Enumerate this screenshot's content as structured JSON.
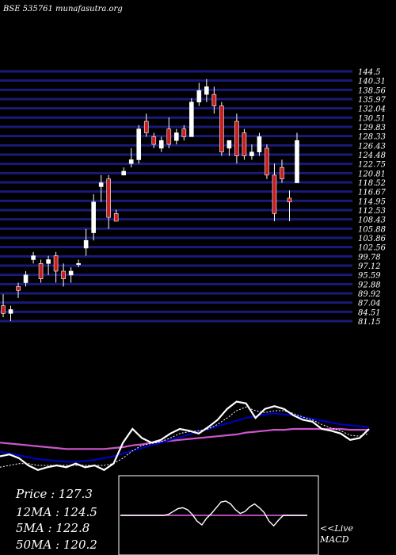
{
  "header": {
    "title": "BSE 535761 munafasutra.org"
  },
  "indicators": {
    "price": "Price   : 127.3",
    "ma12": "12MA : 124.5",
    "ma5": "5MA : 122.8",
    "ma50": "50MA : 120.2"
  },
  "macd": {
    "live_label": "<<Live",
    "label": "MACD"
  },
  "colors": {
    "background": "#000000",
    "gridline": "#1a1a7a",
    "bull": "#ffffff",
    "bear": "#c81e1e",
    "ma_fast": "#0000cc",
    "ma_slow": "#cc55cc",
    "price_line": "#ffffff"
  },
  "chart_data": [
    {
      "type": "candlestick",
      "title": "BSE 535761 munafasutra.org",
      "y_tick_labels": [
        "144.5",
        "140.31",
        "138.56",
        "135.97",
        "132.04",
        "130.51",
        "129.83",
        "128.33",
        "126.43",
        "124.48",
        "122.75",
        "120.81",
        "118.52",
        "116.67",
        "114.95",
        "112.53",
        "108.43",
        "105.88",
        "103.86",
        "102.56",
        "99.78",
        "97.12",
        "95.59",
        "92.88",
        "89.92",
        "87.04",
        "84.51",
        "81.15"
      ],
      "ylim": [
        80,
        145
      ],
      "candles": [
        {
          "o": 84,
          "h": 87,
          "l": 81,
          "c": 82
        },
        {
          "o": 82,
          "h": 84,
          "l": 80,
          "c": 83
        },
        {
          "o": 89,
          "h": 90,
          "l": 86,
          "c": 88
        },
        {
          "o": 90,
          "h": 93,
          "l": 89,
          "c": 92
        },
        {
          "o": 96,
          "h": 98,
          "l": 95,
          "c": 97
        },
        {
          "o": 95,
          "h": 96,
          "l": 90,
          "c": 91
        },
        {
          "o": 95,
          "h": 97,
          "l": 92,
          "c": 96
        },
        {
          "o": 97,
          "h": 98,
          "l": 90,
          "c": 93
        },
        {
          "o": 93,
          "h": 95,
          "l": 89,
          "c": 91
        },
        {
          "o": 92,
          "h": 94,
          "l": 90,
          "c": 93
        },
        {
          "o": 95,
          "h": 96,
          "l": 94,
          "c": 95
        },
        {
          "o": 99,
          "h": 104,
          "l": 97,
          "c": 101
        },
        {
          "o": 103,
          "h": 113,
          "l": 101,
          "c": 111
        },
        {
          "o": 115,
          "h": 118,
          "l": 111,
          "c": 116
        },
        {
          "o": 117,
          "h": 118,
          "l": 104,
          "c": 107
        },
        {
          "o": 108,
          "h": 109,
          "l": 106,
          "c": 106
        },
        {
          "o": 118,
          "h": 120,
          "l": 118,
          "c": 119
        },
        {
          "o": 121,
          "h": 125,
          "l": 120,
          "c": 122
        },
        {
          "o": 122,
          "h": 131,
          "l": 121,
          "c": 130
        },
        {
          "o": 132,
          "h": 134,
          "l": 128,
          "c": 129
        },
        {
          "o": 128,
          "h": 129,
          "l": 125,
          "c": 126
        },
        {
          "o": 125,
          "h": 128,
          "l": 124,
          "c": 127
        },
        {
          "o": 130,
          "h": 133,
          "l": 125,
          "c": 126
        },
        {
          "o": 127,
          "h": 130,
          "l": 126,
          "c": 129
        },
        {
          "o": 130,
          "h": 131,
          "l": 127,
          "c": 128
        },
        {
          "o": 128,
          "h": 138,
          "l": 128,
          "c": 137
        },
        {
          "o": 137,
          "h": 142,
          "l": 136,
          "c": 140
        },
        {
          "o": 139,
          "h": 143,
          "l": 137,
          "c": 141
        },
        {
          "o": 139,
          "h": 141,
          "l": 134,
          "c": 136
        },
        {
          "o": 136,
          "h": 137,
          "l": 123,
          "c": 124
        },
        {
          "o": 125,
          "h": 127,
          "l": 123,
          "c": 127
        },
        {
          "o": 132,
          "h": 134,
          "l": 121,
          "c": 123
        },
        {
          "o": 129,
          "h": 130,
          "l": 122,
          "c": 123
        },
        {
          "o": 123,
          "h": 126,
          "l": 122,
          "c": 124
        },
        {
          "o": 124,
          "h": 129,
          "l": 123,
          "c": 128
        },
        {
          "o": 125,
          "h": 126,
          "l": 117,
          "c": 118
        },
        {
          "o": 118,
          "h": 121,
          "l": 106,
          "c": 108
        },
        {
          "o": 120,
          "h": 122,
          "l": 116,
          "c": 117
        },
        {
          "o": 112,
          "h": 114,
          "l": 106,
          "c": 111
        },
        {
          "o": 116,
          "h": 129,
          "l": 116,
          "c": 127
        }
      ]
    },
    {
      "type": "line",
      "series": [
        {
          "name": "",
          "values": [
            0.3,
            0.32,
            0.28,
            0.2,
            0.15,
            0.18,
            0.2,
            0.18,
            0.22,
            0.18,
            0.2,
            0.15,
            0.22,
            0.45,
            0.6,
            0.5,
            0.45,
            0.48,
            0.55,
            0.6,
            0.58,
            0.55,
            0.62,
            0.7,
            0.82,
            0.9,
            0.88,
            0.72,
            0.82,
            0.85,
            0.82,
            0.75,
            0.7,
            0.68,
            0.6,
            0.58,
            0.55,
            0.48,
            0.5,
            0.6
          ]
        },
        {
          "name": "",
          "values": [
            0.18,
            0.2,
            0.22,
            0.22,
            0.2,
            0.2,
            0.2,
            0.2,
            0.2,
            0.2,
            0.2,
            0.2,
            0.22,
            0.28,
            0.36,
            0.42,
            0.44,
            0.46,
            0.5,
            0.55,
            0.57,
            0.58,
            0.6,
            0.65,
            0.72,
            0.8,
            0.84,
            0.8,
            0.78,
            0.8,
            0.8,
            0.77,
            0.73,
            0.7,
            0.65,
            0.61,
            0.58,
            0.53,
            0.52,
            0.55
          ]
        },
        {
          "name": "",
          "values": [
            0.35,
            0.33,
            0.31,
            0.29,
            0.27,
            0.26,
            0.25,
            0.24,
            0.24,
            0.25,
            0.26,
            0.28,
            0.3,
            0.33,
            0.36,
            0.39,
            0.42,
            0.45,
            0.48,
            0.51,
            0.54,
            0.57,
            0.6,
            0.63,
            0.66,
            0.69,
            0.72,
            0.74,
            0.76,
            0.77,
            0.76,
            0.75,
            0.73,
            0.71,
            0.69,
            0.67,
            0.65,
            0.64,
            0.63,
            0.62
          ]
        },
        {
          "name": "",
          "values": [
            0.45,
            0.44,
            0.43,
            0.42,
            0.41,
            0.4,
            0.39,
            0.38,
            0.38,
            0.38,
            0.38,
            0.38,
            0.39,
            0.4,
            0.42,
            0.43,
            0.45,
            0.46,
            0.47,
            0.48,
            0.49,
            0.5,
            0.51,
            0.52,
            0.53,
            0.54,
            0.56,
            0.57,
            0.58,
            0.59,
            0.59,
            0.6,
            0.6,
            0.6,
            0.6,
            0.6,
            0.6,
            0.59,
            0.59,
            0.59
          ]
        }
      ]
    },
    {
      "type": "line",
      "series": [
        {
          "name": "MACD",
          "values": [
            0,
            0,
            0,
            0,
            0,
            0,
            0,
            0,
            0,
            0,
            0.1,
            0.4,
            0.7,
            0.8,
            0.6,
            0.1,
            -0.6,
            -1.0,
            -0.3,
            0.2,
            0.8,
            1.4,
            1.5,
            1.2,
            0.6,
            0.2,
            0.4,
            0.9,
            1.2,
            0.8,
            0.3,
            -0.6,
            -1.1,
            -0.5,
            0,
            0,
            0,
            0,
            0,
            0
          ]
        },
        {
          "name": "Signal",
          "values": [
            0,
            0,
            0,
            0,
            0,
            0,
            0,
            0,
            0,
            0,
            0,
            0,
            0,
            0,
            0,
            0,
            0,
            0,
            0,
            0,
            0,
            0,
            0,
            0,
            0,
            0,
            0,
            0,
            0,
            0,
            0,
            0,
            0,
            0,
            0,
            0,
            0,
            0,
            0,
            0
          ]
        }
      ]
    }
  ]
}
